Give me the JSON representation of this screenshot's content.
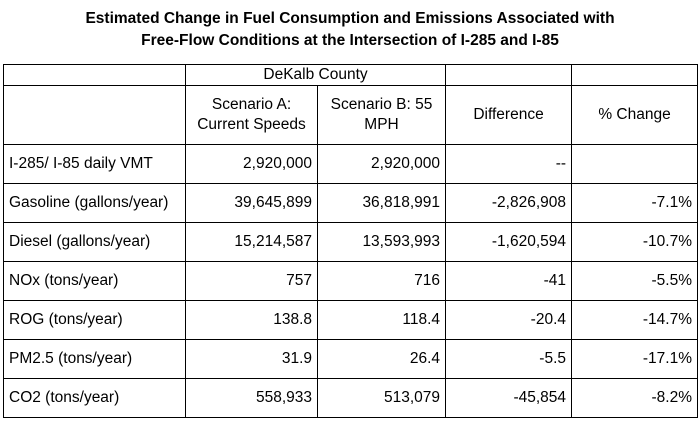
{
  "title": {
    "line1": "Estimated Change in Fuel Consumption and Emissions Associated with",
    "line2": "Free-Flow Conditions at the Intersection of I-285 and I-85"
  },
  "table": {
    "county": "DeKalb County",
    "headers": {
      "scenario_a": "Scenario A: Current Speeds",
      "scenario_b": "Scenario B: 55 MPH",
      "difference": "Difference",
      "pct_change": "% Change"
    },
    "rows": [
      {
        "label": "I-285/ I-85 daily VMT",
        "a": "2,920,000",
        "b": "2,920,000",
        "diff": "--",
        "pct": ""
      },
      {
        "label": "Gasoline (gallons/year)",
        "a": "39,645,899",
        "b": "36,818,991",
        "diff": "-2,826,908",
        "pct": "-7.1%"
      },
      {
        "label": "Diesel (gallons/year)",
        "a": "15,214,587",
        "b": "13,593,993",
        "diff": "-1,620,594",
        "pct": "-10.7%"
      },
      {
        "label": "NOx (tons/year)",
        "a": "757",
        "b": "716",
        "diff": "-41",
        "pct": "-5.5%"
      },
      {
        "label": "ROG (tons/year)",
        "a": "138.8",
        "b": "118.4",
        "diff": "-20.4",
        "pct": "-14.7%"
      },
      {
        "label": "PM2.5 (tons/year)",
        "a": "31.9",
        "b": "26.4",
        "diff": "-5.5",
        "pct": "-17.1%"
      },
      {
        "label": "CO2 (tons/year)",
        "a": "558,933",
        "b": "513,079",
        "diff": "-45,854",
        "pct": "-8.2%"
      }
    ]
  }
}
